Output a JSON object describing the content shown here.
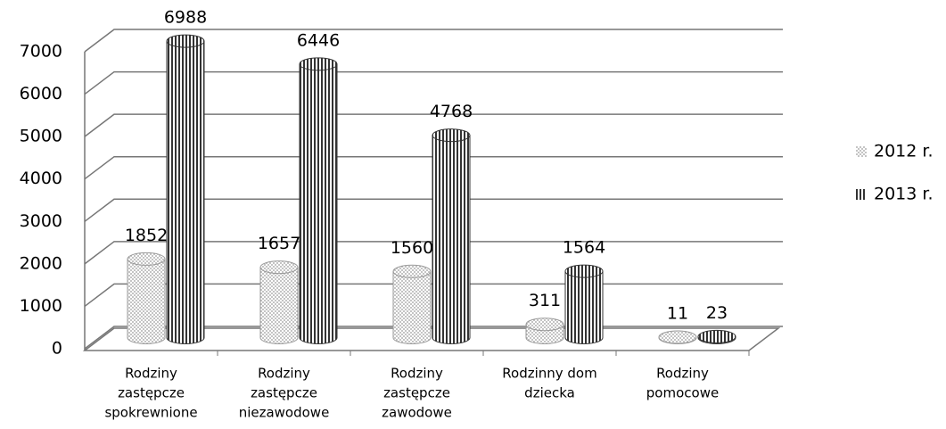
{
  "chart_data": {
    "type": "bar3d",
    "categories": [
      [
        "Rodziny",
        "zastępcze",
        "spokrewnione"
      ],
      [
        "Rodziny",
        "zastępcze",
        "niezawodowe"
      ],
      [
        "Rodziny",
        "zastępcze",
        "zawodowe"
      ],
      [
        "Rodzinny dom",
        "dziecka"
      ],
      [
        "Rodziny",
        "pomocowe"
      ]
    ],
    "series": [
      {
        "name": "2012 r.",
        "color": "#9a9a9a",
        "values": [
          1852,
          1657,
          1560,
          311,
          11
        ]
      },
      {
        "name": "2013 r.",
        "color": "#333333",
        "values": [
          6988,
          6446,
          4768,
          1564,
          23
        ]
      }
    ],
    "ylim": [
      0,
      7000
    ],
    "yticks": [
      0,
      1000,
      2000,
      3000,
      4000,
      5000,
      6000,
      7000
    ],
    "grid": true,
    "legend": "right"
  }
}
